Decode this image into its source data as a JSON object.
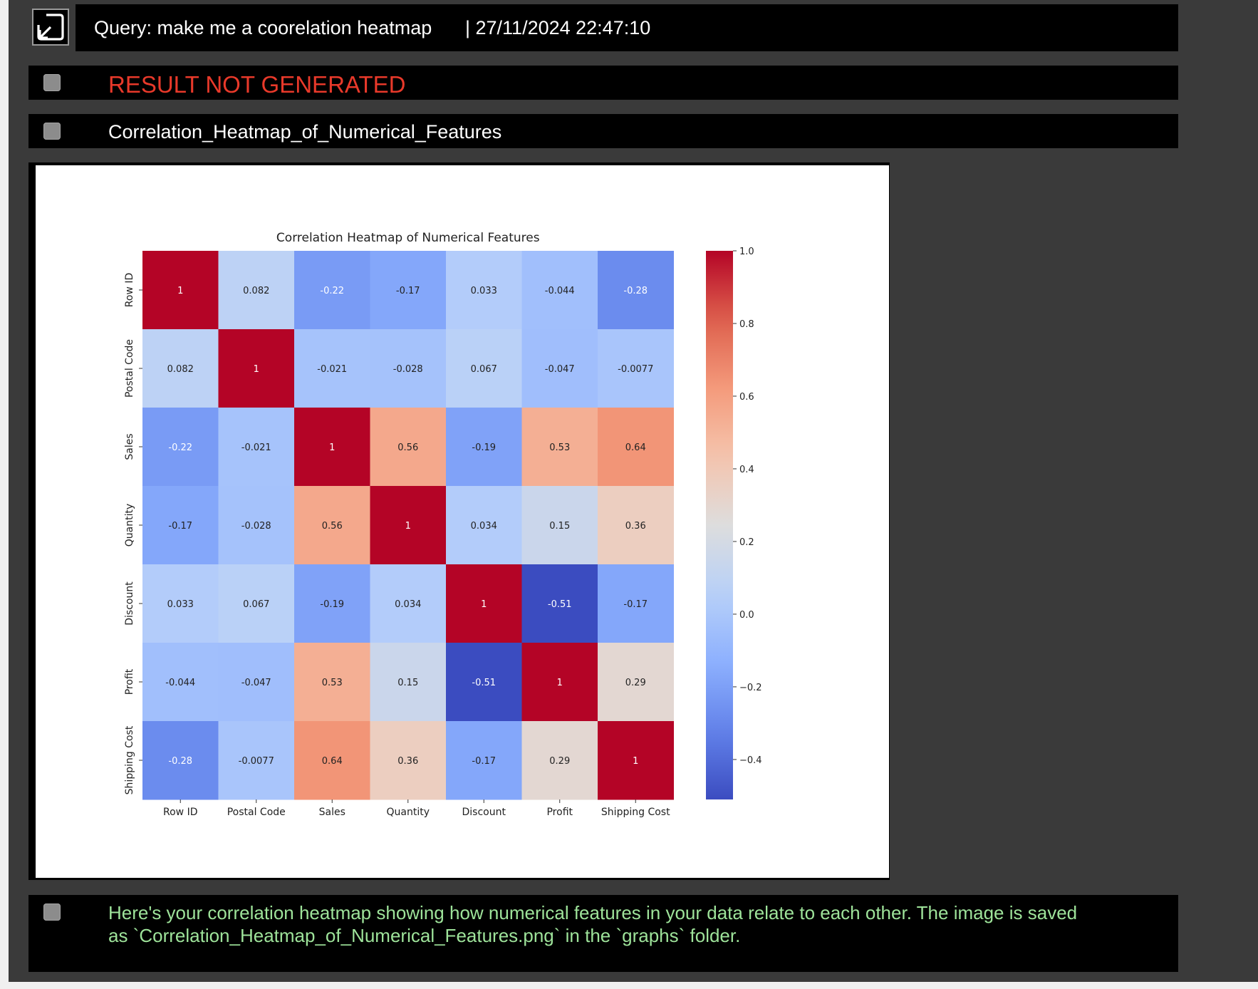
{
  "header": {
    "query_text": "Query: make me a coorelation heatmap",
    "timestamp": "| 27/11/2024 22:47:10"
  },
  "messages": {
    "result_status": "RESULT NOT GENERATED",
    "graph_name": "Correlation_Heatmap_of_Numerical_Features",
    "response_line1": "Here's your correlation heatmap showing how numerical features in your data relate to each other.  The image is saved",
    "response_line2": "as `Correlation_Heatmap_of_Numerical_Features.png` in the `graphs` folder."
  },
  "colors": {
    "panel_bg": "#3a3a3a",
    "bar_bg": "#000000",
    "header_text": "#ffffff",
    "error_text": "#e8392a",
    "response_text": "#9ee39a",
    "checkbox": "#8c8c8c"
  },
  "icons": {
    "expand": "expand-arrow-icon",
    "checkbox": "checkbox-icon"
  },
  "chart_data": {
    "type": "heatmap",
    "title": "Correlation Heatmap of Numerical Features",
    "colormap": "coolwarm",
    "labels": [
      "Row ID",
      "Postal Code",
      "Sales",
      "Quantity",
      "Discount",
      "Profit",
      "Shipping Cost"
    ],
    "values": [
      [
        1,
        0.082,
        -0.22,
        -0.17,
        0.033,
        -0.044,
        -0.28
      ],
      [
        0.082,
        1,
        -0.021,
        -0.028,
        0.067,
        -0.047,
        -0.0077
      ],
      [
        -0.22,
        -0.021,
        1,
        0.56,
        -0.19,
        0.53,
        0.64
      ],
      [
        -0.17,
        -0.028,
        0.56,
        1,
        0.034,
        0.15,
        0.36
      ],
      [
        0.033,
        0.067,
        -0.19,
        0.034,
        1,
        -0.51,
        -0.17
      ],
      [
        -0.044,
        -0.047,
        0.53,
        0.15,
        -0.51,
        1,
        0.29
      ],
      [
        -0.28,
        -0.0077,
        0.64,
        0.36,
        -0.17,
        0.29,
        1
      ]
    ],
    "colorbar": {
      "range": [
        -0.51,
        1.0
      ],
      "ticks": [
        1.0,
        0.8,
        0.6,
        0.4,
        0.2,
        0.0,
        -0.2,
        -0.4
      ],
      "tick_labels": [
        "1.0",
        "0.8",
        "0.6",
        "0.4",
        "0.2",
        "0.0",
        "−0.2",
        "−0.4"
      ]
    }
  }
}
